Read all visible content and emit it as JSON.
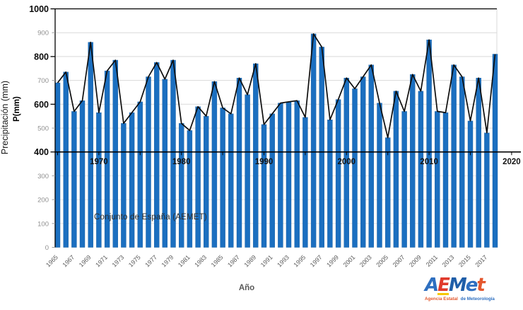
{
  "page": {
    "background": "#ffffff"
  },
  "chart_data": {
    "type": "bar",
    "title": "",
    "annotation": "Conjunto de España (AEMET)",
    "xlabel": "Año",
    "ylabel_primary": "Precipitación (mm)",
    "ylabel_secondary": "P(mm)",
    "ylim": [
      0,
      1000
    ],
    "x_range_years": [
      1965,
      2020
    ],
    "grid": "horizontal",
    "series_note": "same data drawn as blue bars and black connecting line",
    "years": [
      1965,
      1966,
      1967,
      1968,
      1969,
      1970,
      1971,
      1972,
      1973,
      1974,
      1975,
      1976,
      1977,
      1978,
      1979,
      1980,
      1981,
      1982,
      1983,
      1984,
      1985,
      1986,
      1987,
      1988,
      1989,
      1990,
      1991,
      1992,
      1993,
      1994,
      1995,
      1996,
      1997,
      1998,
      1999,
      2000,
      2001,
      2002,
      2003,
      2004,
      2005,
      2006,
      2007,
      2008,
      2009,
      2010,
      2011,
      2012,
      2013,
      2014,
      2015,
      2016,
      2017,
      2018
    ],
    "values": [
      690,
      735,
      570,
      615,
      860,
      565,
      740,
      785,
      520,
      565,
      610,
      715,
      775,
      705,
      785,
      520,
      490,
      590,
      550,
      695,
      585,
      560,
      710,
      640,
      770,
      515,
      560,
      605,
      610,
      615,
      545,
      895,
      840,
      535,
      620,
      710,
      665,
      715,
      765,
      605,
      460,
      655,
      570,
      725,
      655,
      870,
      570,
      565,
      765,
      715,
      530,
      710,
      480,
      810
    ],
    "y_tick_labels": [
      "0",
      "100",
      "200",
      "300",
      "400",
      "500",
      "600",
      "700",
      "800",
      "900",
      "1000"
    ],
    "y_bold_labels": [
      "400",
      "600",
      "800",
      "1000"
    ],
    "x_axis_labels": [
      "1970",
      "1980",
      "1990",
      "2000",
      "2010",
      "2020"
    ],
    "x_axis_cross_value": 400,
    "x_tick_labels": [
      "1965",
      "1967",
      "1969",
      "1971",
      "1973",
      "1975",
      "1977",
      "1979",
      "1981",
      "1983",
      "1985",
      "1987",
      "1989",
      "1991",
      "1993",
      "1995",
      "1997",
      "1999",
      "2001",
      "2003",
      "2005",
      "2007",
      "2009",
      "2011",
      "2013",
      "2015",
      "2017"
    ],
    "colors": {
      "bar": "#1b6fc0",
      "bar_edge": "#155a9c",
      "line": "#0d0d0d",
      "axis": "#000000",
      "grid": "#d9d9d9",
      "grid_faint": "#e6e6e6",
      "y_label_gray": "#8f8f8f",
      "y_label_bold": "#0a0a0a",
      "decade_label": "#141414",
      "bottom_label": "#595959"
    }
  },
  "logo": {
    "word": "AEMet",
    "letters": [
      {
        "ch": "A",
        "color": "#2e6fc0"
      },
      {
        "ch": "E",
        "color": "#e03a2c",
        "accent": "#f6c800"
      },
      {
        "ch": "M",
        "color": "#1f5ea8"
      },
      {
        "ch": "e",
        "color": "#2e6fc0"
      },
      {
        "ch": "t",
        "color": "#e4572e"
      }
    ],
    "tagline_left": "Agencia Estatal",
    "tagline_right": "de Meteorología",
    "tagline_left_color": "#e2562b",
    "tagline_right_color": "#2e6fc0"
  }
}
